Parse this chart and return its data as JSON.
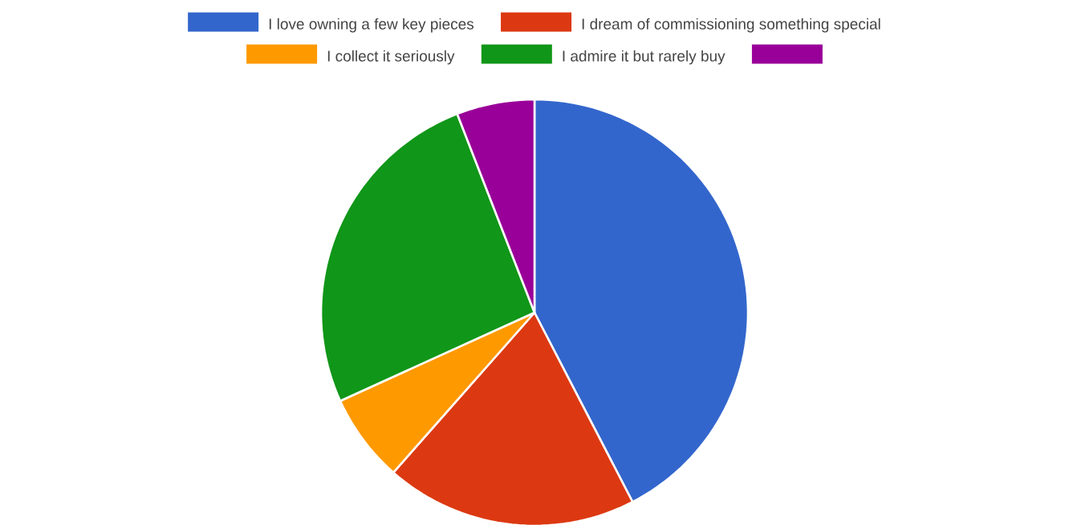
{
  "chart_data": {
    "type": "pie",
    "legend": "top",
    "categories": [
      "I love owning a few key pieces",
      "I dream of commissioning something special",
      "I collect it seriously",
      "I admire it but rarely buy",
      null
    ],
    "values": [
      42.4,
      19.1,
      6.7,
      25.9,
      5.9
    ],
    "colors": [
      "#3366cc",
      "#dc3912",
      "#ff9900",
      "#109618",
      "#990099"
    ]
  }
}
